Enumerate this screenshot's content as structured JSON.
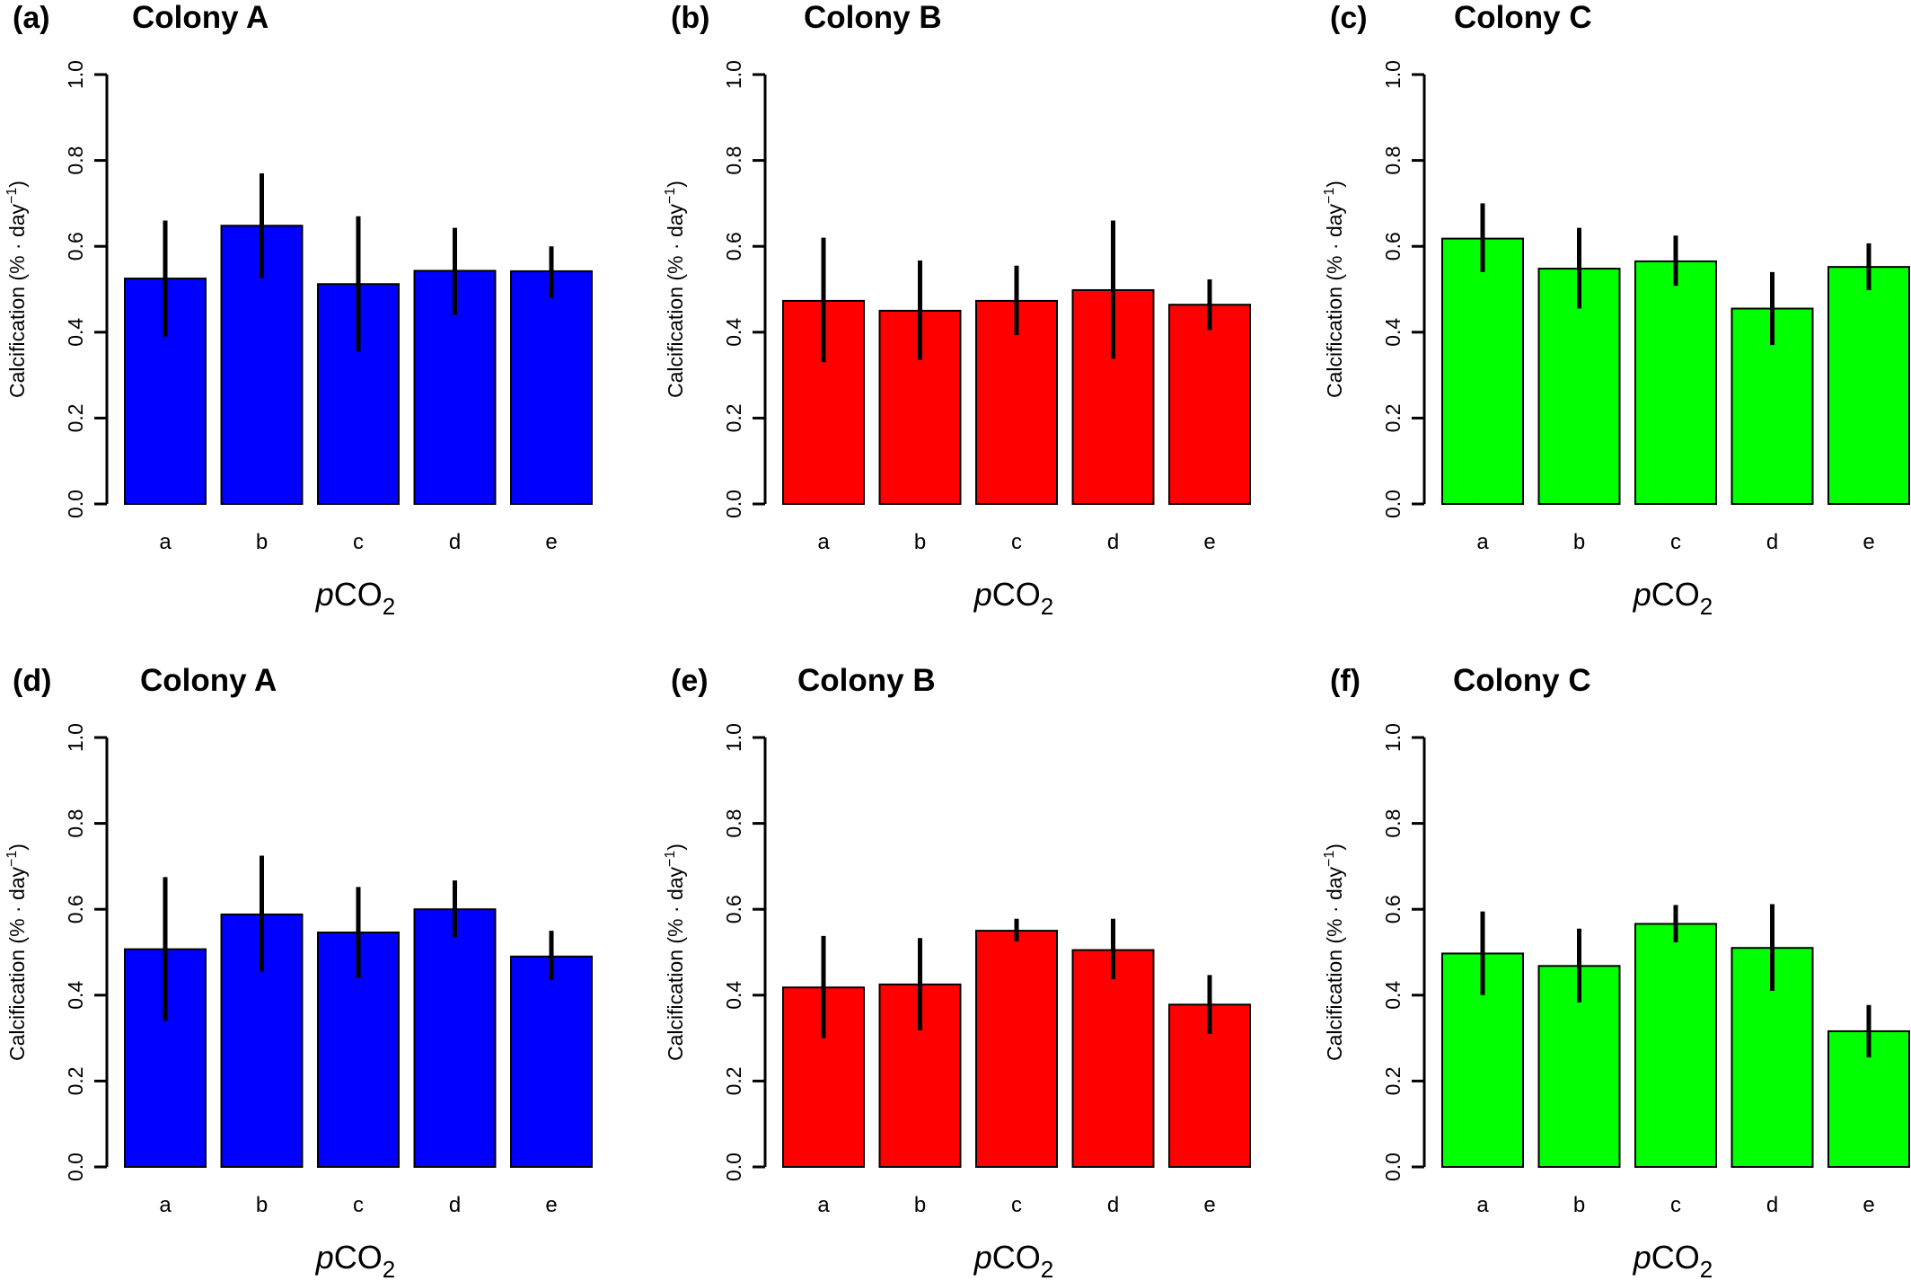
{
  "chart_data": [
    {
      "panel": "(a)",
      "title": "Colony A",
      "type": "bar",
      "categories": [
        "a",
        "b",
        "c",
        "d",
        "e"
      ],
      "values": [
        0.525,
        0.648,
        0.512,
        0.543,
        0.542
      ],
      "error_lower": [
        0.39,
        0.525,
        0.355,
        0.44,
        0.48
      ],
      "error_upper": [
        0.66,
        0.77,
        0.67,
        0.643,
        0.6
      ],
      "ylabel": "Calcification (% · day⁻¹)",
      "xlabel_prefix": "p",
      "xlabel_main": "CO",
      "xlabel_sub": "2",
      "yticks": [
        "0.0",
        "0.2",
        "0.4",
        "0.6",
        "0.8",
        "1.0"
      ],
      "ylim": [
        0,
        1
      ],
      "color": "#0000ff"
    },
    {
      "panel": "(b)",
      "title": "Colony B",
      "type": "bar",
      "categories": [
        "a",
        "b",
        "c",
        "d",
        "e"
      ],
      "values": [
        0.473,
        0.45,
        0.473,
        0.498,
        0.464
      ],
      "error_lower": [
        0.33,
        0.335,
        0.393,
        0.338,
        0.405
      ],
      "error_upper": [
        0.62,
        0.567,
        0.555,
        0.66,
        0.523
      ],
      "ylabel": "Calcification (% · day⁻¹)",
      "xlabel_prefix": "p",
      "xlabel_main": "CO",
      "xlabel_sub": "2",
      "yticks": [
        "0.0",
        "0.2",
        "0.4",
        "0.6",
        "0.8",
        "1.0"
      ],
      "ylim": [
        0,
        1
      ],
      "color": "#ff0000"
    },
    {
      "panel": "(c)",
      "title": "Colony C",
      "type": "bar",
      "categories": [
        "a",
        "b",
        "c",
        "d",
        "e"
      ],
      "values": [
        0.618,
        0.548,
        0.565,
        0.455,
        0.552
      ],
      "error_lower": [
        0.54,
        0.455,
        0.508,
        0.37,
        0.498
      ],
      "error_upper": [
        0.7,
        0.643,
        0.625,
        0.54,
        0.607
      ],
      "ylabel": "Calcification (% · day⁻¹)",
      "xlabel_prefix": "p",
      "xlabel_main": "CO",
      "xlabel_sub": "2",
      "yticks": [
        "0.0",
        "0.2",
        "0.4",
        "0.6",
        "0.8",
        "1.0"
      ],
      "ylim": [
        0,
        1
      ],
      "color": "#00ff00"
    },
    {
      "panel": "(d)",
      "title": "Colony A",
      "type": "bar",
      "categories": [
        "a",
        "b",
        "c",
        "d",
        "e"
      ],
      "values": [
        0.507,
        0.588,
        0.546,
        0.6,
        0.49
      ],
      "error_lower": [
        0.34,
        0.455,
        0.44,
        0.535,
        0.435
      ],
      "error_upper": [
        0.675,
        0.725,
        0.652,
        0.667,
        0.55
      ],
      "ylabel": "Calcification (% · day⁻¹)",
      "xlabel_prefix": "p",
      "xlabel_main": "CO",
      "xlabel_sub": "2",
      "yticks": [
        "0.0",
        "0.2",
        "0.4",
        "0.6",
        "0.8",
        "1.0"
      ],
      "ylim": [
        0,
        1
      ],
      "color": "#0000ff"
    },
    {
      "panel": "(e)",
      "title": "Colony B",
      "type": "bar",
      "categories": [
        "a",
        "b",
        "c",
        "d",
        "e"
      ],
      "values": [
        0.418,
        0.425,
        0.55,
        0.505,
        0.378
      ],
      "error_lower": [
        0.3,
        0.318,
        0.525,
        0.437,
        0.31
      ],
      "error_upper": [
        0.538,
        0.533,
        0.578,
        0.578,
        0.447
      ],
      "ylabel": "Calcification (% · day⁻¹)",
      "xlabel_prefix": "p",
      "xlabel_main": "CO",
      "xlabel_sub": "2",
      "yticks": [
        "0.0",
        "0.2",
        "0.4",
        "0.6",
        "0.8",
        "1.0"
      ],
      "ylim": [
        0,
        1
      ],
      "color": "#ff0000"
    },
    {
      "panel": "(f)",
      "title": "Colony C",
      "type": "bar",
      "categories": [
        "a",
        "b",
        "c",
        "d",
        "e"
      ],
      "values": [
        0.497,
        0.468,
        0.566,
        0.51,
        0.316
      ],
      "error_lower": [
        0.4,
        0.383,
        0.523,
        0.41,
        0.255
      ],
      "error_upper": [
        0.595,
        0.555,
        0.61,
        0.612,
        0.377
      ],
      "ylabel": "Calcification (% · day⁻¹)",
      "xlabel_prefix": "p",
      "xlabel_main": "CO",
      "xlabel_sub": "2",
      "yticks": [
        "0.0",
        "0.2",
        "0.4",
        "0.6",
        "0.8",
        "1.0"
      ],
      "ylim": [
        0,
        1
      ],
      "color": "#00ff00"
    }
  ]
}
